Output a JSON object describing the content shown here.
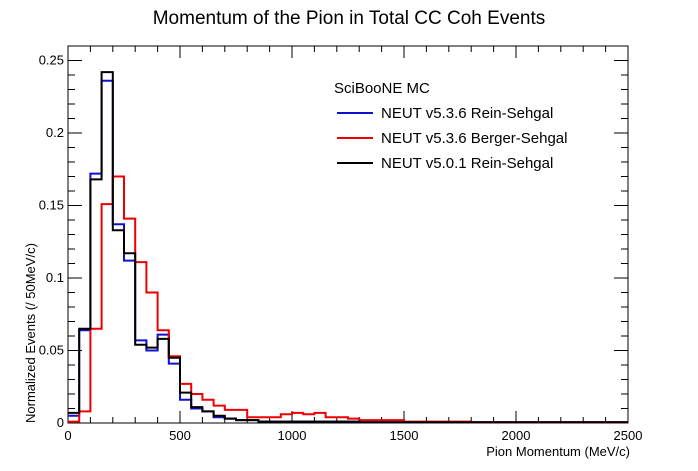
{
  "chart_data": {
    "type": "histogram",
    "title": "Momentum of the Pion in Total CC Coh Events",
    "xlabel": "Pion Momentum (MeV/c)",
    "ylabel": "Normalized Events (/ 50MeV/c)",
    "xlim": [
      0,
      2500
    ],
    "ylim": [
      0,
      0.26
    ],
    "x_ticks": [
      "0",
      "500",
      "1000",
      "1500",
      "2000",
      "2500"
    ],
    "y_ticks": [
      "0",
      "0.05",
      "0.1",
      "0.15",
      "0.2",
      "0.25"
    ],
    "bin_width": 50,
    "legend_header": "SciBooNE MC",
    "legend_position": "top-right",
    "grid": false,
    "series": [
      {
        "name": "NEUT v5.3.6 Rein-Sehgal",
        "color": "#1010d0",
        "values": [
          0.005,
          0.064,
          0.172,
          0.236,
          0.137,
          0.112,
          0.057,
          0.05,
          0.061,
          0.041,
          0.016,
          0.01,
          0.008,
          0.004,
          0.003,
          0.002,
          0.002,
          0.001,
          0.001,
          0.001,
          0.001,
          0.001,
          0.001,
          0.001,
          0.001,
          0.001,
          0.0005,
          0.0005,
          0.0005,
          0.0005,
          0.0005,
          0.0005,
          0.0005,
          0.0005,
          0.0005,
          0.0005,
          0.0005,
          0.0005,
          0.0005,
          0.0005,
          0.0005,
          0.0005,
          0.0005,
          0.0005,
          0.0005,
          0.0005,
          0.0005,
          0.0005,
          0.0005,
          0.0005
        ]
      },
      {
        "name": "NEUT v5.3.6 Berger-Sehgal",
        "color": "#ee0000",
        "values": [
          0.001,
          0.008,
          0.065,
          0.151,
          0.17,
          0.141,
          0.111,
          0.09,
          0.064,
          0.046,
          0.027,
          0.02,
          0.016,
          0.012,
          0.009,
          0.009,
          0.004,
          0.004,
          0.004,
          0.006,
          0.007,
          0.006,
          0.007,
          0.004,
          0.004,
          0.003,
          0.002,
          0.002,
          0.002,
          0.002,
          0.001,
          0.001,
          0.001,
          0.001,
          0.001,
          0.001,
          0.0005,
          0.0005,
          0.0005,
          0.0005,
          0.0005,
          0.0005,
          0.0005,
          0.0005,
          0.0005,
          0.0005,
          0.0005,
          0.0005,
          0.0005,
          0.0005
        ]
      },
      {
        "name": "NEUT v5.0.1 Rein-Sehgal",
        "color": "#000000",
        "values": [
          0.007,
          0.065,
          0.168,
          0.242,
          0.133,
          0.117,
          0.054,
          0.052,
          0.058,
          0.045,
          0.021,
          0.011,
          0.008,
          0.005,
          0.003,
          0.002,
          0.002,
          0.001,
          0.001,
          0.001,
          0.001,
          0.001,
          0.001,
          0.001,
          0.001,
          0.001,
          0.0005,
          0.0005,
          0.0005,
          0.0005,
          0.0005,
          0.0005,
          0.0005,
          0.0005,
          0.0005,
          0.0005,
          0.0005,
          0.0005,
          0.0005,
          0.0005,
          0.0005,
          0.0005,
          0.0005,
          0.0005,
          0.0005,
          0.0005,
          0.0005,
          0.0005,
          0.0005,
          0.0005
        ]
      }
    ]
  }
}
